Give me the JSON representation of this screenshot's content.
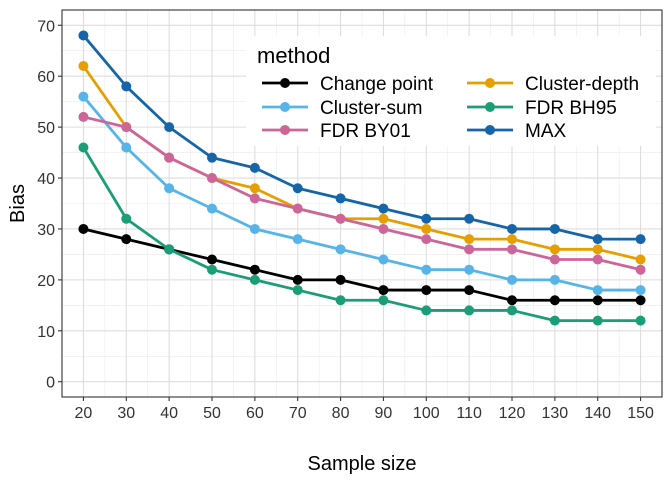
{
  "chart_data": {
    "type": "line",
    "xlabel": "Sample size",
    "ylabel": "Bias",
    "x": [
      20,
      30,
      40,
      50,
      60,
      70,
      80,
      90,
      100,
      110,
      120,
      130,
      140,
      150
    ],
    "x_ticks": [
      "20",
      "30",
      "40",
      "50",
      "60",
      "70",
      "80",
      "90",
      "100",
      "110",
      "120",
      "130",
      "140",
      "150"
    ],
    "y_ticks": [
      "0",
      "10",
      "20",
      "30",
      "40",
      "50",
      "60",
      "70"
    ],
    "ylim": [
      -3,
      73
    ],
    "xlim": [
      15,
      155
    ],
    "grid": true,
    "legend": {
      "title": "method",
      "placement": "top-right",
      "columns": 2,
      "order": [
        "Change point",
        "Cluster-depth",
        "Cluster-sum",
        "FDR BH95",
        "FDR BY01",
        "MAX"
      ]
    },
    "series": [
      {
        "name": "Change point",
        "color": "#000000",
        "values": [
          30,
          28,
          26,
          24,
          22,
          20,
          20,
          18,
          18,
          18,
          16,
          16,
          16,
          16
        ]
      },
      {
        "name": "Cluster-depth",
        "color": "#E69F00",
        "values": [
          62,
          50,
          44,
          40,
          38,
          34,
          32,
          32,
          30,
          28,
          28,
          26,
          26,
          24
        ]
      },
      {
        "name": "Cluster-sum",
        "color": "#56B4E9",
        "values": [
          56,
          46,
          38,
          34,
          30,
          28,
          26,
          24,
          22,
          22,
          20,
          20,
          18,
          18
        ]
      },
      {
        "name": "FDR BH95",
        "color": "#1B9E77",
        "values": [
          46,
          32,
          26,
          22,
          20,
          18,
          16,
          16,
          14,
          14,
          14,
          12,
          12,
          12
        ]
      },
      {
        "name": "FDR BY01",
        "color": "#CC6699",
        "values": [
          52,
          50,
          44,
          40,
          36,
          34,
          32,
          30,
          28,
          26,
          26,
          24,
          24,
          22
        ]
      },
      {
        "name": "MAX",
        "color": "#1565A8",
        "values": [
          68,
          58,
          50,
          44,
          42,
          38,
          36,
          34,
          32,
          32,
          30,
          30,
          28,
          28
        ]
      }
    ],
    "draw_order": [
      "Change point",
      "Cluster-depth",
      "Cluster-sum",
      "FDR BH95",
      "FDR BY01",
      "MAX"
    ]
  }
}
